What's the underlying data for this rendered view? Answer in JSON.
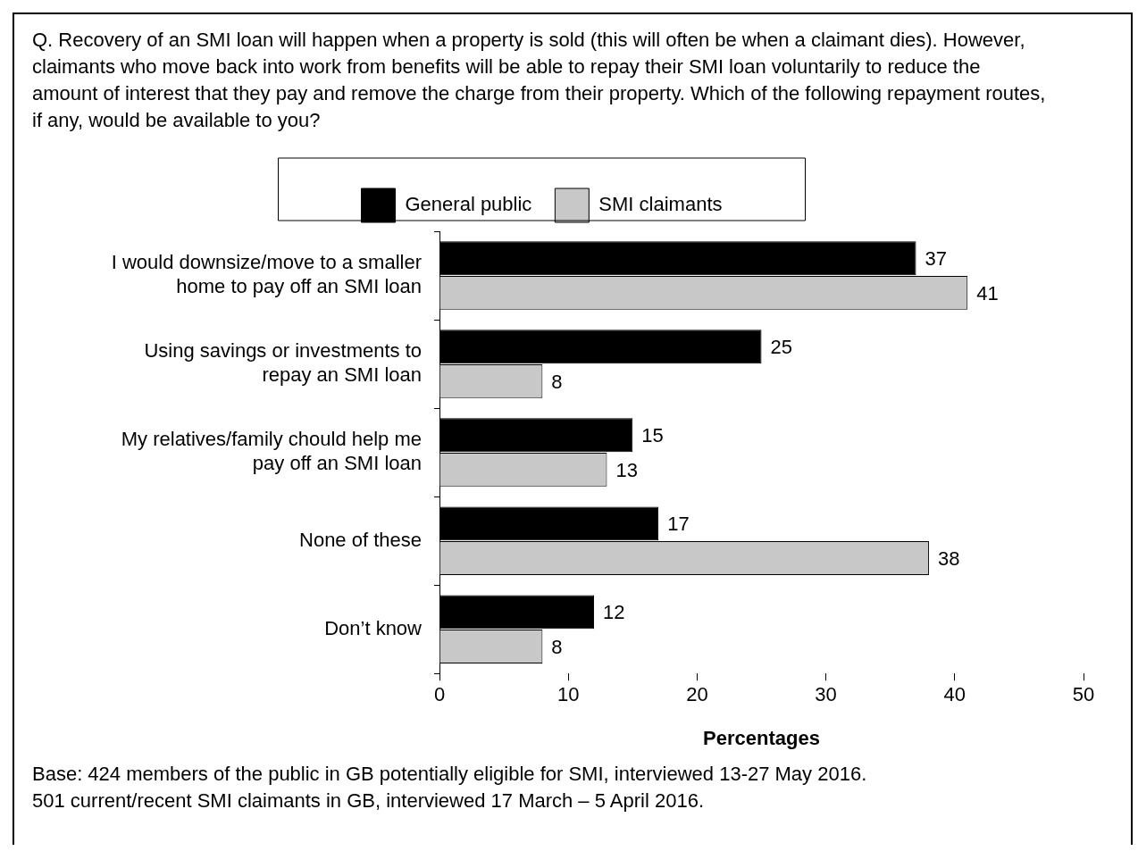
{
  "chart_data": {
    "type": "bar",
    "orientation": "horizontal",
    "title": "Q. Recovery of an SMI loan will happen when a property is sold (this will often be when a claimant dies). However, claimants who move back into work from benefits will be able to repay their SMI loan voluntarily to reduce the amount of interest that they pay and remove the charge from their property. Which of the following repayment routes, if any, would be available to you?",
    "categories": [
      "I would downsize/move to a smaller\nhome to pay off an SMI loan",
      "Using savings or investments to\nrepay an SMI loan",
      "My relatives/family chould help me\npay off an SMI loan",
      "None of these",
      "Don’t know"
    ],
    "series": [
      {
        "name": "General public",
        "color": "#000000",
        "values": [
          37,
          25,
          15,
          17,
          12
        ]
      },
      {
        "name": "SMI claimants",
        "color": "#c8c8c8",
        "values": [
          41,
          8,
          13,
          38,
          8
        ]
      }
    ],
    "xlim": [
      0,
      50
    ],
    "xticks": [
      0,
      10,
      20,
      30,
      40,
      50
    ],
    "xlabel": "Percentages",
    "legend": "top",
    "data_labels": true,
    "annotations": [
      "Base: 424 members of the public in GB potentially eligible for SMI, interviewed 13-27 May 2016.",
      "501 current/recent SMI claimants in GB, interviewed 17 March – 5 April 2016."
    ]
  }
}
